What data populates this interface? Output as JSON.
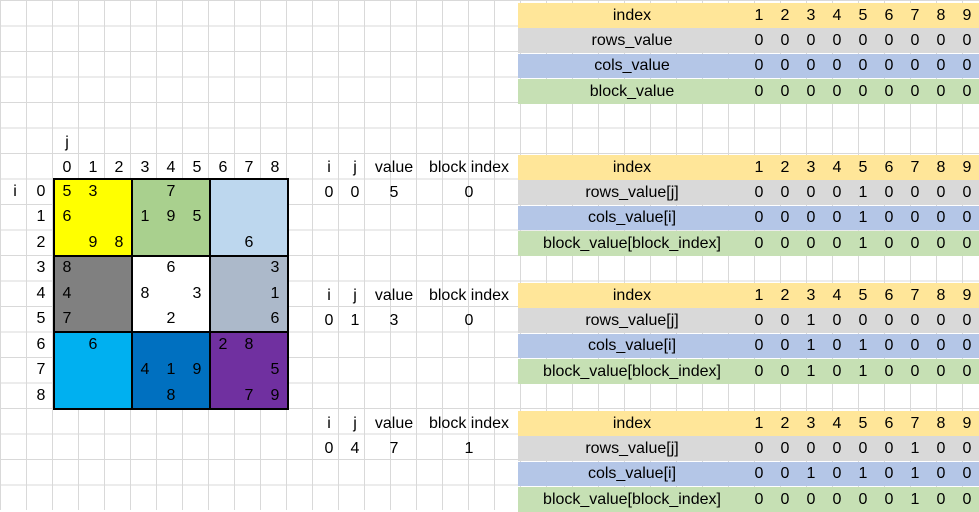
{
  "colors": {
    "index_row": "#ffe699",
    "rows_row": "#d9d9d9",
    "cols_row": "#b4c6e7",
    "block_row": "#c6e0b4",
    "blocks": [
      "#ffff00",
      "#a9d08e",
      "#bdd7ee",
      "#808080",
      "#ffffff",
      "#acb9ca",
      "#00b0f0",
      "#0070c0",
      "#7030a0"
    ]
  },
  "grid": {
    "j_label": "j",
    "i_label": "i",
    "col_numbers": [
      "0",
      "1",
      "2",
      "3",
      "4",
      "5",
      "6",
      "7",
      "8"
    ],
    "row_numbers": [
      "0",
      "1",
      "2",
      "3",
      "4",
      "5",
      "6",
      "7",
      "8"
    ],
    "cells": [
      {
        "r": 0,
        "c": 0,
        "v": "5"
      },
      {
        "r": 0,
        "c": 1,
        "v": "3"
      },
      {
        "r": 0,
        "c": 4,
        "v": "7"
      },
      {
        "r": 1,
        "c": 0,
        "v": "6"
      },
      {
        "r": 1,
        "c": 3,
        "v": "1"
      },
      {
        "r": 1,
        "c": 4,
        "v": "9"
      },
      {
        "r": 1,
        "c": 5,
        "v": "5"
      },
      {
        "r": 2,
        "c": 1,
        "v": "9"
      },
      {
        "r": 2,
        "c": 2,
        "v": "8"
      },
      {
        "r": 2,
        "c": 7,
        "v": "6"
      },
      {
        "r": 3,
        "c": 0,
        "v": "8"
      },
      {
        "r": 3,
        "c": 4,
        "v": "6"
      },
      {
        "r": 3,
        "c": 8,
        "v": "3"
      },
      {
        "r": 4,
        "c": 0,
        "v": "4"
      },
      {
        "r": 4,
        "c": 3,
        "v": "8"
      },
      {
        "r": 4,
        "c": 5,
        "v": "3"
      },
      {
        "r": 4,
        "c": 8,
        "v": "1"
      },
      {
        "r": 5,
        "c": 0,
        "v": "7"
      },
      {
        "r": 5,
        "c": 4,
        "v": "2"
      },
      {
        "r": 5,
        "c": 8,
        "v": "6"
      },
      {
        "r": 6,
        "c": 1,
        "v": "6"
      },
      {
        "r": 6,
        "c": 6,
        "v": "2"
      },
      {
        "r": 6,
        "c": 7,
        "v": "8"
      },
      {
        "r": 7,
        "c": 3,
        "v": "4"
      },
      {
        "r": 7,
        "c": 4,
        "v": "1"
      },
      {
        "r": 7,
        "c": 5,
        "v": "9"
      },
      {
        "r": 7,
        "c": 8,
        "v": "5"
      },
      {
        "r": 8,
        "c": 4,
        "v": "8"
      },
      {
        "r": 8,
        "c": 7,
        "v": "7"
      },
      {
        "r": 8,
        "c": 8,
        "v": "9"
      }
    ]
  },
  "top_table": {
    "labels": [
      "index",
      "rows_value",
      "cols_value",
      "block_value"
    ],
    "index": [
      "1",
      "2",
      "3",
      "4",
      "5",
      "6",
      "7",
      "8",
      "9"
    ],
    "rows": [
      [
        "0",
        "0",
        "0",
        "0",
        "0",
        "0",
        "0",
        "0",
        "0"
      ],
      [
        "0",
        "0",
        "0",
        "0",
        "0",
        "0",
        "0",
        "0",
        "0"
      ],
      [
        "0",
        "0",
        "0",
        "0",
        "0",
        "0",
        "0",
        "0",
        "0"
      ]
    ]
  },
  "steps": [
    {
      "headers": [
        "i",
        "j",
        "value",
        "block index"
      ],
      "values": [
        "0",
        "0",
        "5",
        "0"
      ],
      "labels": [
        "index",
        "rows_value[j]",
        "cols_value[i]",
        "block_value[block_index]"
      ],
      "index": [
        "1",
        "2",
        "3",
        "4",
        "5",
        "6",
        "7",
        "8",
        "9"
      ],
      "rows": [
        [
          "0",
          "0",
          "0",
          "0",
          "1",
          "0",
          "0",
          "0",
          "0"
        ],
        [
          "0",
          "0",
          "0",
          "0",
          "1",
          "0",
          "0",
          "0",
          "0"
        ],
        [
          "0",
          "0",
          "0",
          "0",
          "1",
          "0",
          "0",
          "0",
          "0"
        ]
      ]
    },
    {
      "headers": [
        "i",
        "j",
        "value",
        "block index"
      ],
      "values": [
        "0",
        "1",
        "3",
        "0"
      ],
      "labels": [
        "index",
        "rows_value[j]",
        "cols_value[i]",
        "block_value[block_index]"
      ],
      "index": [
        "1",
        "2",
        "3",
        "4",
        "5",
        "6",
        "7",
        "8",
        "9"
      ],
      "rows": [
        [
          "0",
          "0",
          "1",
          "0",
          "0",
          "0",
          "0",
          "0",
          "0"
        ],
        [
          "0",
          "0",
          "1",
          "0",
          "1",
          "0",
          "0",
          "0",
          "0"
        ],
        [
          "0",
          "0",
          "1",
          "0",
          "1",
          "0",
          "0",
          "0",
          "0"
        ]
      ]
    },
    {
      "headers": [
        "i",
        "j",
        "value",
        "block index"
      ],
      "values": [
        "0",
        "4",
        "7",
        "1"
      ],
      "labels": [
        "index",
        "rows_value[j]",
        "cols_value[i]",
        "block_value[block_index]"
      ],
      "index": [
        "1",
        "2",
        "3",
        "4",
        "5",
        "6",
        "7",
        "8",
        "9"
      ],
      "rows": [
        [
          "0",
          "0",
          "0",
          "0",
          "0",
          "0",
          "1",
          "0",
          "0"
        ],
        [
          "0",
          "0",
          "1",
          "0",
          "1",
          "0",
          "1",
          "0",
          "0"
        ],
        [
          "0",
          "0",
          "0",
          "0",
          "0",
          "0",
          "1",
          "0",
          "0"
        ]
      ]
    }
  ]
}
